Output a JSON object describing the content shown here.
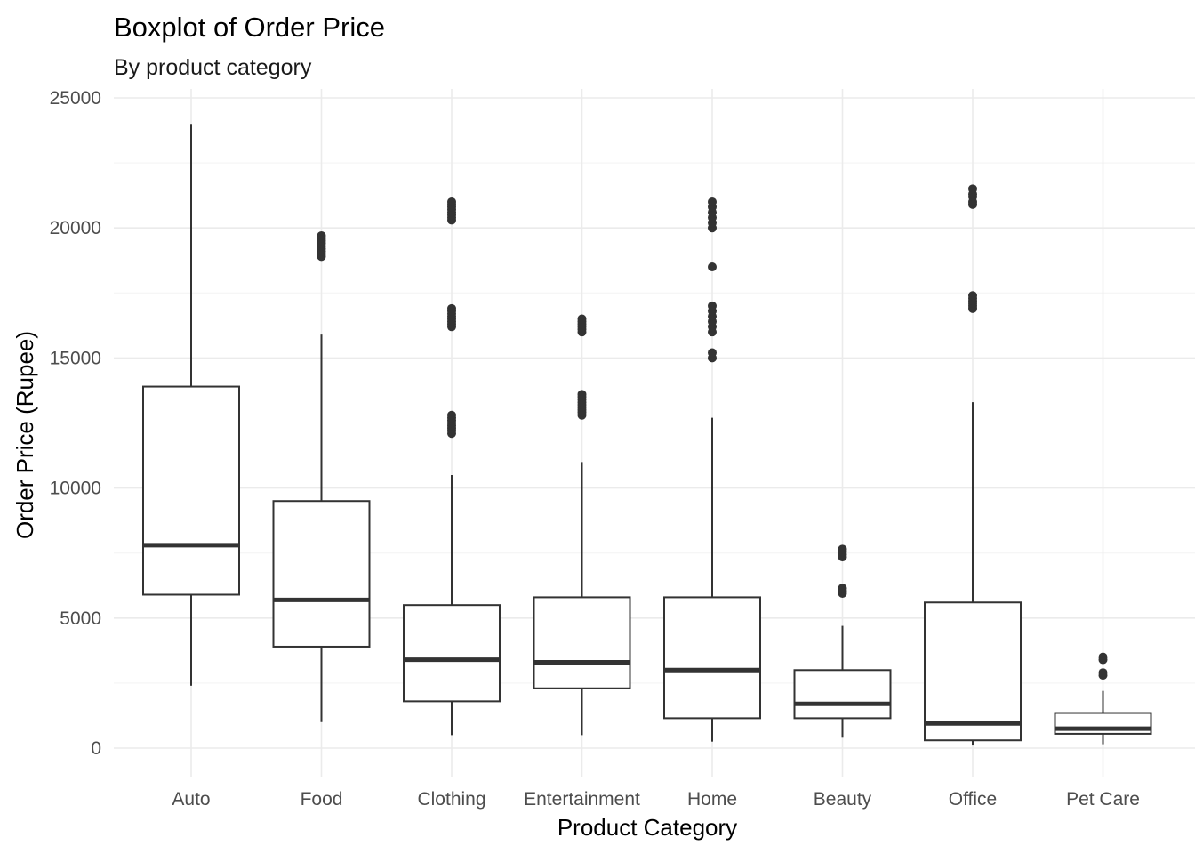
{
  "chart_data": {
    "type": "boxplot",
    "title": "Boxplot of Order Price",
    "subtitle": "By product category",
    "xlabel": "Product Category",
    "ylabel": "Order Price (Rupee)",
    "ylim": [
      0,
      25000
    ],
    "yticks": [
      0,
      5000,
      10000,
      15000,
      20000,
      25000
    ],
    "ytick_labels": [
      "0",
      "5000",
      "10000",
      "15000",
      "20000",
      "25000"
    ],
    "grid": true,
    "legend": "none",
    "colors": {
      "box_stroke": "#333333",
      "grid": "#ebebeb"
    },
    "categories": [
      "Auto",
      "Food",
      "Clothing",
      "Entertainment",
      "Home",
      "Beauty",
      "Office",
      "Pet Care"
    ],
    "boxes": [
      {
        "category": "Auto",
        "whisker_low": 2400,
        "q1": 5900,
        "median": 7800,
        "q3": 13900,
        "whisker_high": 24000,
        "outliers": []
      },
      {
        "category": "Food",
        "whisker_low": 1000,
        "q1": 3900,
        "median": 5700,
        "q3": 9500,
        "whisker_high": 15900,
        "outliers": [
          18900,
          19000,
          19100,
          19200,
          19300,
          19400,
          19500,
          19600,
          19700
        ]
      },
      {
        "category": "Clothing",
        "whisker_low": 500,
        "q1": 1800,
        "median": 3400,
        "q3": 5500,
        "whisker_high": 10500,
        "outliers": [
          12100,
          12200,
          12300,
          12400,
          12500,
          12600,
          12700,
          12800,
          16200,
          16300,
          16400,
          16500,
          16600,
          16700,
          16800,
          16900,
          20300,
          20400,
          20500,
          20600,
          20700,
          20800,
          20900,
          21000
        ]
      },
      {
        "category": "Entertainment",
        "whisker_low": 500,
        "q1": 2300,
        "median": 3300,
        "q3": 5800,
        "whisker_high": 11000,
        "outliers": [
          12800,
          12900,
          13000,
          13100,
          13200,
          13300,
          13400,
          13500,
          13600,
          16000,
          16100,
          16200,
          16300,
          16400,
          16500
        ]
      },
      {
        "category": "Home",
        "whisker_low": 250,
        "q1": 1150,
        "median": 3000,
        "q3": 5800,
        "whisker_high": 12700,
        "outliers": [
          15000,
          15200,
          16000,
          16200,
          16400,
          16600,
          16800,
          17000,
          18500,
          20000,
          20200,
          20400,
          20600,
          20800,
          21000
        ]
      },
      {
        "category": "Beauty",
        "whisker_low": 400,
        "q1": 1150,
        "median": 1700,
        "q3": 3000,
        "whisker_high": 4700,
        "outliers": [
          5950,
          6050,
          6150,
          7350,
          7450,
          7550,
          7650
        ]
      },
      {
        "category": "Office",
        "whisker_low": 100,
        "q1": 300,
        "median": 950,
        "q3": 5600,
        "whisker_high": 13300,
        "outliers": [
          16900,
          17000,
          17100,
          17200,
          17300,
          17400,
          20900,
          21000,
          21200,
          21300,
          21500
        ]
      },
      {
        "category": "Pet Care",
        "whisker_low": 150,
        "q1": 550,
        "median": 750,
        "q3": 1350,
        "whisker_high": 2200,
        "outliers": [
          2800,
          2900,
          3400,
          3500
        ]
      }
    ]
  }
}
